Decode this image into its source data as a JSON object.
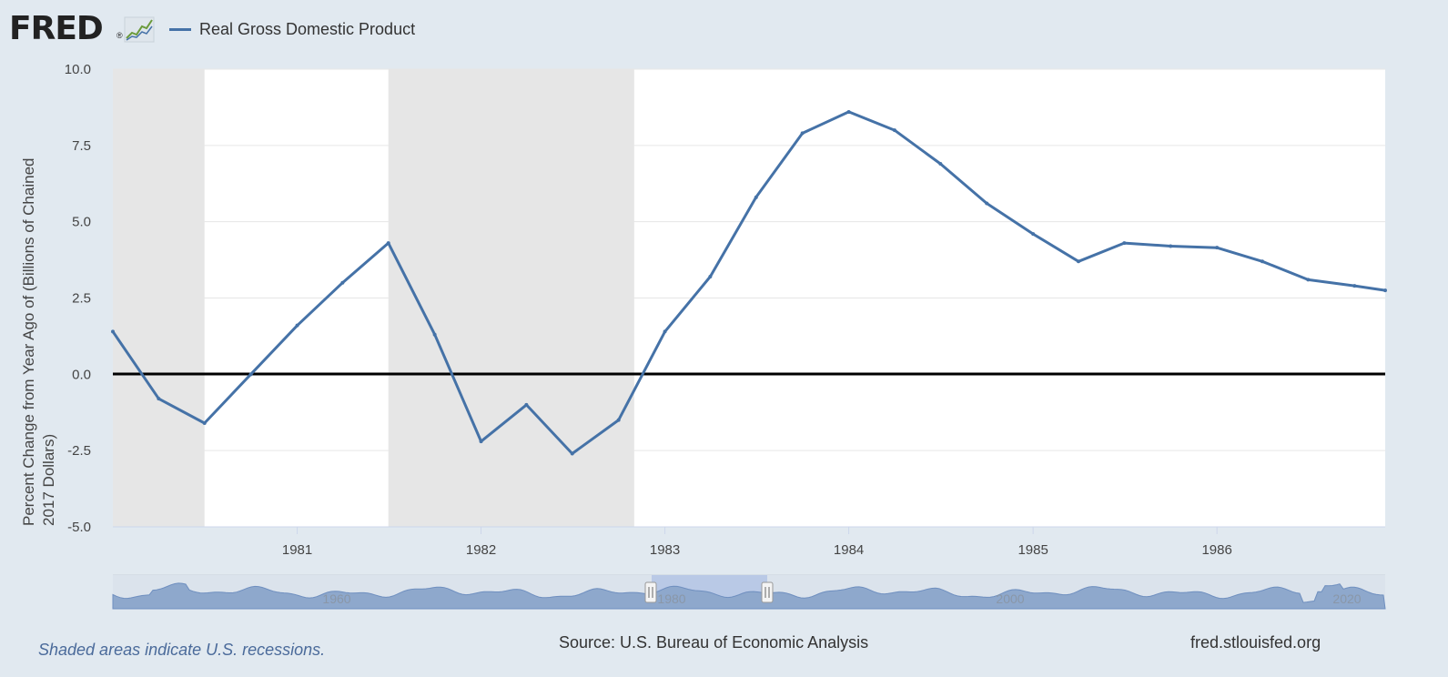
{
  "header": {
    "logo_text": "FRED",
    "logo_mark": "®",
    "logo_icon": "line-chart-icon"
  },
  "colors": {
    "series": "#4572a7",
    "recession": "#e6e6e6",
    "zero_line": "#000000",
    "navigator_fill": "#8ea8cc",
    "navigator_window": "#b9c9e6",
    "background": "#e1e9f0"
  },
  "chart_data": {
    "type": "line",
    "title": "",
    "xlabel": "",
    "ylabel": "Percent Change from Year Ago of (Billions of Chained 2017 Dollars)",
    "ylabel_lines": [
      "Percent Change from Year Ago of (Billions of Chained",
      "2017 Dollars)"
    ],
    "ylim": [
      -5.0,
      10.0
    ],
    "yticks": [
      "-5.0",
      "-2.5",
      "0.0",
      "2.5",
      "5.0",
      "7.5",
      "10.0"
    ],
    "xlim": [
      "1980-01-01",
      "1986-12-01"
    ],
    "xticks": [
      "1981",
      "1982",
      "1983",
      "1984",
      "1985",
      "1986"
    ],
    "grid": true,
    "legend_position": "top-left",
    "recessions": [
      [
        "1980-01-01",
        "1980-07-01"
      ],
      [
        "1981-07-01",
        "1982-11-01"
      ]
    ],
    "series": [
      {
        "name": "Real Gross Domestic Product",
        "x": [
          "1980-01-01",
          "1980-04-01",
          "1980-07-01",
          "1980-10-01",
          "1981-01-01",
          "1981-04-01",
          "1981-07-01",
          "1981-10-01",
          "1982-01-01",
          "1982-04-01",
          "1982-07-01",
          "1982-10-01",
          "1983-01-01",
          "1983-04-01",
          "1983-07-01",
          "1983-10-01",
          "1984-01-01",
          "1984-04-01",
          "1984-07-01",
          "1984-10-01",
          "1985-01-01",
          "1985-04-01",
          "1985-07-01",
          "1985-10-01",
          "1986-01-01",
          "1986-04-01",
          "1986-07-01",
          "1986-10-01",
          "1986-12-01"
        ],
        "values": [
          1.4,
          -0.8,
          -1.6,
          0.0,
          1.6,
          3.0,
          4.3,
          1.3,
          -2.2,
          -1.0,
          -2.6,
          -1.5,
          1.4,
          3.2,
          5.8,
          7.9,
          8.6,
          8.0,
          6.9,
          5.6,
          4.6,
          3.7,
          4.3,
          4.2,
          4.15,
          3.7,
          3.1,
          2.9,
          2.75
        ]
      }
    ],
    "navigator": {
      "labels": [
        "1960",
        "1980",
        "2000",
        "2020"
      ]
    }
  },
  "footer": {
    "recession_note": "Shaded areas indicate U.S. recessions.",
    "source": "Source: U.S. Bureau of Economic Analysis",
    "site": "fred.stlouisfed.org"
  }
}
